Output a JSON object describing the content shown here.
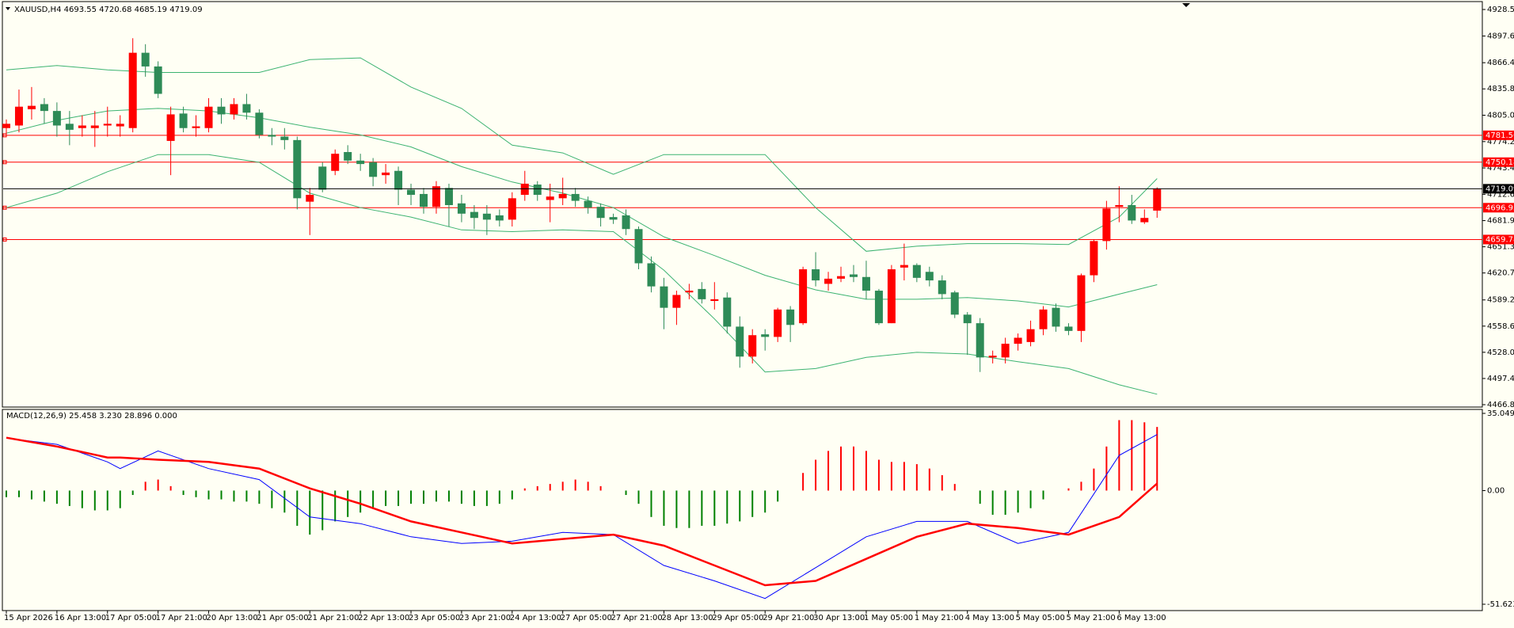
{
  "chart_data": {
    "type": "candlestick",
    "title": "XAUUSD,H4  4693.55 4720.68 4685.19 4719.09",
    "up_color": "#ff0000",
    "down_color": "#2e8b57",
    "open": [
      4790,
      4793,
      4812,
      4818,
      4810,
      4795,
      4790,
      4790,
      4793,
      4792,
      4790,
      4878,
      4862,
      4775,
      4807,
      4790,
      4790,
      4815,
      4806,
      4818,
      4808,
      4782,
      4780,
      4776,
      4704,
      4745,
      4740,
      4762,
      4752,
      4750,
      4735,
      4740,
      4718,
      4713,
      4698,
      4720,
      4702,
      4692,
      4690,
      4688,
      4683,
      4712,
      4724,
      4706,
      4708,
      4713,
      4705,
      4698,
      4686,
      4688,
      4672,
      4632,
      4605,
      4580,
      4598,
      4602,
      4588,
      4592,
      4558,
      4523,
      4549,
      4546,
      4578,
      4562,
      4625,
      4608,
      4614,
      4619,
      4616,
      4600,
      4562,
      4627,
      4630,
      4622,
      4612,
      4598,
      4572,
      4562,
      4522,
      4522,
      4538,
      4540,
      4555,
      4580,
      4558,
      4553,
      4618,
      4658,
      4698,
      4700,
      4680,
      4693.55
    ],
    "high": [
      4800,
      4835,
      4838,
      4825,
      4820,
      4810,
      4805,
      4810,
      4815,
      4805,
      4895,
      4888,
      4868,
      4815,
      4815,
      4805,
      4825,
      4825,
      4825,
      4830,
      4812,
      4790,
      4790,
      4780,
      4720,
      4750,
      4765,
      4770,
      4760,
      4755,
      4748,
      4745,
      4725,
      4720,
      4728,
      4725,
      4712,
      4700,
      4700,
      4695,
      4715,
      4740,
      4728,
      4725,
      4732,
      4720,
      4710,
      4702,
      4690,
      4695,
      4675,
      4640,
      4615,
      4600,
      4608,
      4610,
      4610,
      4598,
      4570,
      4555,
      4555,
      4580,
      4582,
      4628,
      4645,
      4622,
      4628,
      4630,
      4635,
      4602,
      4630,
      4655,
      4632,
      4628,
      4618,
      4600,
      4575,
      4568,
      4530,
      4545,
      4550,
      4565,
      4582,
      4585,
      4562,
      4620,
      4660,
      4705,
      4722,
      4712,
      4695,
      4720.68
    ],
    "low": [
      4780,
      4785,
      4800,
      4795,
      4780,
      4770,
      4780,
      4768,
      4780,
      4780,
      4785,
      4850,
      4825,
      4735,
      4785,
      4780,
      4785,
      4795,
      4800,
      4800,
      4778,
      4770,
      4765,
      4695,
      4665,
      4715,
      4735,
      4748,
      4740,
      4722,
      4725,
      4700,
      4700,
      4690,
      4690,
      4675,
      4680,
      4672,
      4665,
      4675,
      4675,
      4705,
      4705,
      4680,
      4700,
      4698,
      4690,
      4675,
      4678,
      4665,
      4625,
      4598,
      4555,
      4560,
      4590,
      4585,
      4578,
      4550,
      4510,
      4515,
      4530,
      4540,
      4540,
      4560,
      4605,
      4600,
      4610,
      4610,
      4590,
      4560,
      4562,
      4612,
      4610,
      4605,
      4590,
      4568,
      4525,
      4505,
      4515,
      4515,
      4530,
      4535,
      4548,
      4552,
      4548,
      4540,
      4610,
      4648,
      4680,
      4678,
      4678,
      4685.19
    ],
    "close": [
      4795,
      4815,
      4816,
      4810,
      4793,
      4788,
      4793,
      4793,
      4795,
      4795,
      4878,
      4862,
      4830,
      4806,
      4790,
      4792,
      4815,
      4806,
      4818,
      4808,
      4782,
      4780,
      4776,
      4708,
      4712,
      4718,
      4760,
      4752,
      4748,
      4733,
      4738,
      4718,
      4712,
      4698,
      4722,
      4700,
      4690,
      4685,
      4683,
      4682,
      4708,
      4725,
      4712,
      4710,
      4713,
      4705,
      4697,
      4685,
      4683,
      4672,
      4632,
      4605,
      4580,
      4595,
      4600,
      4590,
      4590,
      4558,
      4523,
      4548,
      4546,
      4578,
      4560,
      4625,
      4612,
      4614,
      4617,
      4616,
      4600,
      4562,
      4625,
      4630,
      4615,
      4612,
      4596,
      4572,
      4562,
      4522,
      4524,
      4538,
      4545,
      4555,
      4578,
      4558,
      4553,
      4618,
      4658,
      4696,
      4700,
      4682,
      4685,
      4719.09
    ],
    "bands": {
      "x": [
        0,
        4,
        8,
        12,
        16,
        20,
        24,
        28,
        32,
        36,
        40,
        44,
        48,
        52,
        56,
        60,
        64,
        68,
        72,
        76,
        80,
        84,
        88,
        91
      ],
      "upper": [
        4858,
        4863,
        4858,
        4855,
        4855,
        4855,
        4870,
        4872,
        4838,
        4813,
        4770,
        4761,
        4736,
        4759,
        4759,
        4759,
        4697,
        4646,
        4652,
        4655,
        4655,
        4654,
        4686,
        4731
      ],
      "middle": [
        4784,
        4799,
        4810,
        4813,
        4810,
        4802,
        4791,
        4782,
        4768,
        4745,
        4727,
        4714,
        4697,
        4663,
        4641,
        4618,
        4601,
        4590,
        4590,
        4592,
        4588,
        4581,
        4596,
        4607
      ],
      "lower": [
        4697,
        4714,
        4739,
        4759,
        4759,
        4750,
        4714,
        4697,
        4686,
        4671,
        4669,
        4671,
        4669,
        4624,
        4567,
        4505,
        4509,
        4522,
        4528,
        4526,
        4517,
        4509,
        4490,
        4479
      ],
      "color": "#3cb371"
    },
    "levels": [
      4781.56,
      4750.18,
      4696.95,
      4659.78
    ],
    "level_color": "#ff0000",
    "ylim": [
      4466.8,
      4928.55
    ],
    "yticks": [
      {
        "value": 4928.55,
        "label": "4928.55"
      },
      {
        "value": 4897.6,
        "label": "4897.60"
      },
      {
        "value": 4866.4,
        "label": "4866.40"
      },
      {
        "value": 4835.8,
        "label": "4835.80"
      },
      {
        "value": 4805.0,
        "label": "4805.00"
      },
      {
        "value": 4774.2,
        "label": "4774.20"
      },
      {
        "value": 4743.4,
        "label": "4743.40"
      },
      {
        "value": 4712.6,
        "label": "4712.60"
      },
      {
        "value": 4681.9,
        "label": "4681.90"
      },
      {
        "value": 4651.3,
        "label": "4651.30"
      },
      {
        "value": 4620.7,
        "label": "4620.70"
      },
      {
        "value": 4589.2,
        "label": "4589.20"
      },
      {
        "value": 4558.6,
        "label": "4558.60"
      },
      {
        "value": 4528.0,
        "label": "4528.00"
      },
      {
        "value": 4497.4,
        "label": "4497.40"
      },
      {
        "value": 4466.8,
        "label": "4466.80"
      }
    ],
    "xticks": [
      {
        "value": 0,
        "label": "15 Apr 2026"
      },
      {
        "value": 4,
        "label": "16 Apr 13:00"
      },
      {
        "value": 8,
        "label": "17 Apr 05:00"
      },
      {
        "value": 12,
        "label": "17 Apr 21:00"
      },
      {
        "value": 16,
        "label": "20 Apr 13:00"
      },
      {
        "value": 20,
        "label": "21 Apr 05:00"
      },
      {
        "value": 24,
        "label": "21 Apr 21:00"
      },
      {
        "value": 28,
        "label": "22 Apr 13:00"
      },
      {
        "value": 32,
        "label": "23 Apr 05:00"
      },
      {
        "value": 36,
        "label": "23 Apr 21:00"
      },
      {
        "value": 40,
        "label": "24 Apr 13:00"
      },
      {
        "value": 44,
        "label": "27 Apr 05:00"
      },
      {
        "value": 48,
        "label": "27 Apr 21:00"
      },
      {
        "value": 52,
        "label": "28 Apr 13:00"
      },
      {
        "value": 56,
        "label": "29 Apr 05:00"
      },
      {
        "value": 60,
        "label": "29 Apr 21:00"
      },
      {
        "value": 64,
        "label": "30 Apr 13:00"
      },
      {
        "value": 68,
        "label": "1 May 05:00"
      },
      {
        "value": 72,
        "label": "1 May 21:00"
      },
      {
        "value": 76,
        "label": "4 May 13:00"
      },
      {
        "value": 80,
        "label": "5 May 05:00"
      },
      {
        "value": 84,
        "label": "5 May 21:00"
      },
      {
        "value": 88,
        "label": "6 May 13:00"
      }
    ],
    "macd": {
      "title": "MACD(12,26,9) 25.458 3.230 28.896 0.000",
      "histogram": [
        -3,
        -3,
        -4,
        -5,
        -6,
        -7,
        -8,
        -9,
        -9,
        -8,
        -2,
        4,
        5,
        2,
        -2,
        -3,
        -4,
        -4,
        -5,
        -5,
        -6,
        -8,
        -10,
        -16,
        -20,
        -18,
        -14,
        -12,
        -10,
        -8,
        -7,
        -7,
        -6,
        -6,
        -5,
        -5,
        -6,
        -7,
        -7,
        -6,
        -4,
        1,
        2,
        3,
        4,
        5,
        4,
        2,
        0,
        -2,
        -6,
        -12,
        -16,
        -17,
        -17,
        -16,
        -16,
        -15,
        -14,
        -12,
        -10,
        -5,
        0,
        8,
        14,
        18,
        20,
        20,
        18,
        14,
        13,
        13,
        12,
        10,
        7,
        3,
        0,
        -6,
        -11,
        -11,
        -10,
        -8,
        -4,
        0,
        1,
        4,
        10,
        20,
        32,
        32,
        31,
        28.896
      ],
      "pos_color": "#ff0000",
      "neg_color": "#008000",
      "x": [
        0,
        4,
        8,
        9,
        12,
        16,
        20,
        24,
        28,
        32,
        36,
        40,
        44,
        48,
        52,
        56,
        60,
        64,
        68,
        72,
        76,
        80,
        84,
        88,
        91
      ],
      "main": [
        23.8,
        21,
        13,
        10,
        18,
        10,
        5,
        -12,
        -15,
        -21,
        -24,
        -23,
        -19,
        -20,
        -34,
        -41,
        -49,
        -35,
        -21,
        -14,
        -14,
        -24,
        -19,
        16,
        25.458
      ],
      "signal": [
        24,
        20,
        15,
        15,
        14,
        13,
        10,
        1,
        -6,
        -14,
        -19,
        -24,
        -22,
        -20,
        -25,
        -34,
        -43,
        -41,
        -31,
        -21,
        -15,
        -17,
        -20,
        -12,
        3.23
      ],
      "main_color": "#0000ff",
      "signal_color": "#ff0000",
      "y2lim": [
        -51.623,
        35.049
      ],
      "y2ticks": [
        {
          "value": 35.049,
          "label": "35.049"
        },
        {
          "value": 0,
          "label": "0.00"
        },
        {
          "value": -51.623,
          "label": "-51.623"
        }
      ]
    }
  }
}
